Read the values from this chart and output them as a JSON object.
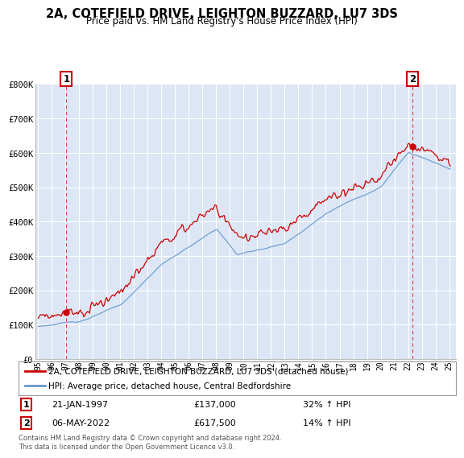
{
  "title": "2A, COTEFIELD DRIVE, LEIGHTON BUZZARD, LU7 3DS",
  "subtitle": "Price paid vs. HM Land Registry's House Price Index (HPI)",
  "hpi_label": "HPI: Average price, detached house, Central Bedfordshire",
  "property_label": "2A, COTEFIELD DRIVE, LEIGHTON BUZZARD, LU7 3DS (detached house)",
  "sale1_date": "21-JAN-1997",
  "sale1_price": 137000,
  "sale1_pct": "32% ↑ HPI",
  "sale2_date": "06-MAY-2022",
  "sale2_price": 617500,
  "sale2_pct": "14% ↑ HPI",
  "sale1_x": 1997.055,
  "sale2_x": 2022.35,
  "sale1_y": 137000,
  "sale2_y": 617500,
  "footnote": "Contains HM Land Registry data © Crown copyright and database right 2024.\nThis data is licensed under the Open Government Licence v3.0.",
  "hpi_color": "#6699cc",
  "property_color": "#cc0000",
  "background_color": "#eef3f9",
  "plot_bg_color": "#dce6f5",
  "grid_color": "#ffffff",
  "ylim": [
    0,
    800000
  ],
  "xlim_start": 1994.8,
  "xlim_end": 2025.5
}
